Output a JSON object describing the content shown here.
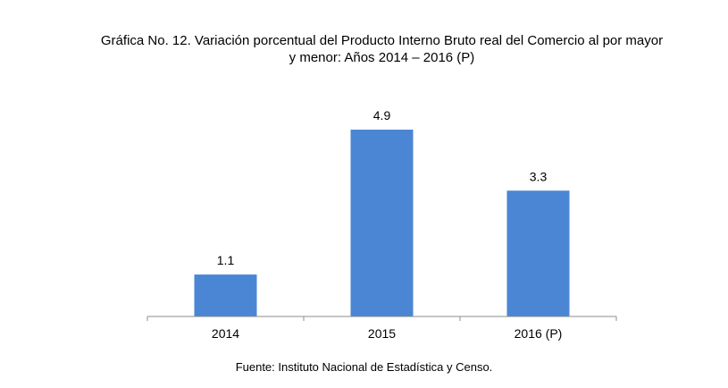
{
  "chart_data": {
    "type": "bar",
    "title_line1": "Gráfica No. 12.  Variación porcentual del Producto Interno Bruto real del Comercio al por mayor",
    "title_line2": "y menor: Años 2014 – 2016 (P)",
    "categories": [
      "2014",
      "2015",
      "2016 (P)"
    ],
    "values": [
      1.1,
      4.9,
      3.3
    ],
    "value_labels": [
      "1.1",
      "4.9",
      "3.3"
    ],
    "ylim": [
      0,
      5
    ],
    "grid": false,
    "legend": "none",
    "bar_color": "#4a86d4",
    "axis_color": "#8c8c8c",
    "source": "Fuente: Instituto Nacional de Estadística y Censo."
  }
}
